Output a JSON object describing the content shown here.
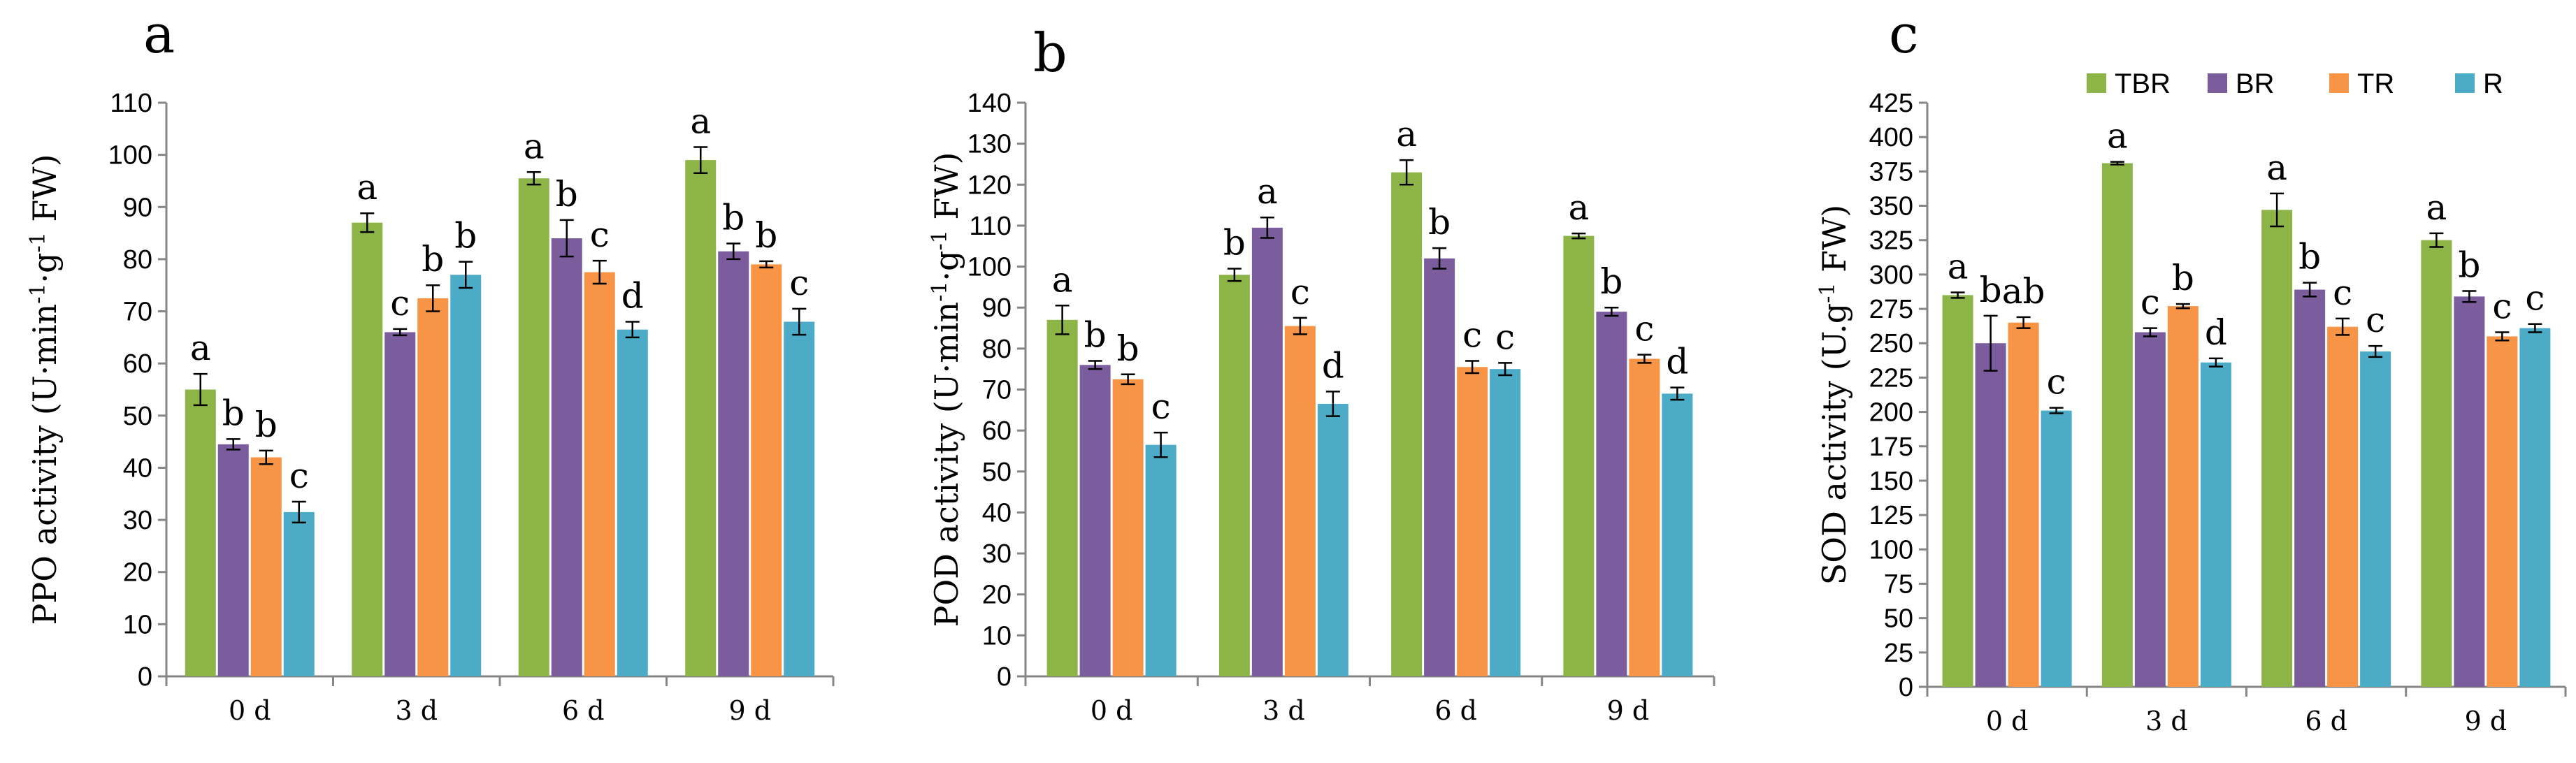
{
  "colors": {
    "TBR": "#8db446",
    "BR": "#7b5d9e",
    "TR": "#f79446",
    "R": "#4cabc6",
    "axis": "#868686",
    "error": "#000000"
  },
  "legend": [
    "TBR",
    "BR",
    "TR",
    "R"
  ],
  "chart_data": [
    {
      "type": "bar",
      "panel": "a",
      "ylabel": "PPO activity (U·min",
      "ylabel_sup1": "-1",
      "ylabel_mid": "·g",
      "ylabel_sup2": "-1",
      "ylabel_end": " FW)",
      "ylim": [
        0,
        110
      ],
      "ystep": 10,
      "categories": [
        "0 d",
        "3 d",
        "6 d",
        "9 d"
      ],
      "series": [
        {
          "name": "TBR",
          "values": [
            55,
            87,
            95.5,
            99
          ],
          "errors": [
            3,
            1.8,
            1.2,
            2.5
          ],
          "letters": [
            "a",
            "a",
            "a",
            "a"
          ]
        },
        {
          "name": "BR",
          "values": [
            44.5,
            66,
            84,
            81.5
          ],
          "errors": [
            1,
            0.6,
            3.5,
            1.5
          ],
          "letters": [
            "b",
            "c",
            "b",
            "b"
          ]
        },
        {
          "name": "TR",
          "values": [
            42,
            72.5,
            77.5,
            79
          ],
          "errors": [
            1.3,
            2.5,
            2.2,
            0.6
          ],
          "letters": [
            "b",
            "b",
            "c",
            "b"
          ]
        },
        {
          "name": "R",
          "values": [
            31.5,
            77,
            66.5,
            68
          ],
          "errors": [
            2,
            2.5,
            1.5,
            2.5
          ],
          "letters": [
            "c",
            "b",
            "d",
            "c"
          ]
        }
      ]
    },
    {
      "type": "bar",
      "panel": "b",
      "ylabel": "POD activity (U·min",
      "ylabel_sup1": "-1",
      "ylabel_mid": "·g",
      "ylabel_sup2": "-1",
      "ylabel_end": " FW)",
      "ylim": [
        0,
        140
      ],
      "ystep": 10,
      "categories": [
        "0 d",
        "3 d",
        "6 d",
        "9 d"
      ],
      "series": [
        {
          "name": "TBR",
          "values": [
            87,
            98,
            123,
            107.5
          ],
          "errors": [
            3.5,
            1.5,
            3,
            0.6
          ],
          "letters": [
            "a",
            "b",
            "a",
            "a"
          ]
        },
        {
          "name": "BR",
          "values": [
            76,
            109.5,
            102,
            89
          ],
          "errors": [
            1,
            2.5,
            2.5,
            1
          ],
          "letters": [
            "b",
            "a",
            "b",
            "b"
          ]
        },
        {
          "name": "TR",
          "values": [
            72.5,
            85.5,
            75.5,
            77.5
          ],
          "errors": [
            1.2,
            2,
            1.5,
            1
          ],
          "letters": [
            "b",
            "c",
            "c",
            "c"
          ]
        },
        {
          "name": "R",
          "values": [
            56.5,
            66.5,
            75,
            69
          ],
          "errors": [
            3,
            3,
            1.5,
            1.5
          ],
          "letters": [
            "c",
            "d",
            "c",
            "d"
          ]
        }
      ]
    },
    {
      "type": "bar",
      "panel": "c",
      "ylabel": "SOD activity (U.g",
      "ylabel_sup1": "-1",
      "ylabel_mid": " FW)",
      "ylabel_sup2": "",
      "ylabel_end": "",
      "ylim": [
        0,
        425
      ],
      "ystep": 25,
      "categories": [
        "0 d",
        "3 d",
        "6 d",
        "9 d"
      ],
      "series": [
        {
          "name": "TBR",
          "values": [
            285,
            381,
            347,
            325
          ],
          "errors": [
            2,
            1,
            12,
            5
          ],
          "letters": [
            "a",
            "a",
            "a",
            "a"
          ]
        },
        {
          "name": "BR",
          "values": [
            250,
            258,
            289,
            284
          ],
          "errors": [
            20,
            3,
            5,
            4
          ],
          "letters": [
            "b",
            "c",
            "b",
            "b"
          ]
        },
        {
          "name": "TR",
          "values": [
            265,
            277,
            262,
            255
          ],
          "errors": [
            4,
            1.5,
            6,
            3
          ],
          "letters": [
            "ab",
            "b",
            "c",
            "c"
          ]
        },
        {
          "name": "R",
          "values": [
            201,
            236,
            244,
            261
          ],
          "errors": [
            2,
            3,
            4,
            3
          ],
          "letters": [
            "c",
            "d",
            "c",
            "c"
          ]
        }
      ]
    }
  ]
}
